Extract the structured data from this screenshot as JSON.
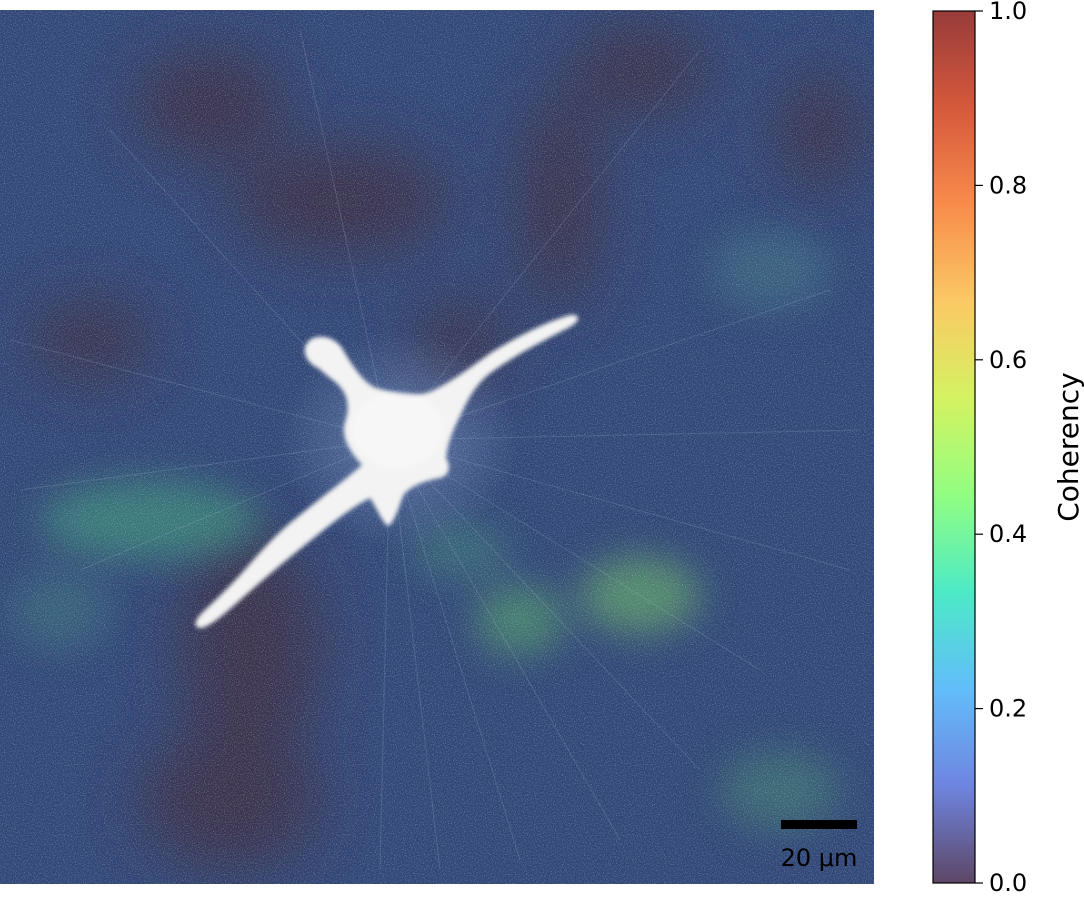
{
  "image": {
    "description_icon": "fluorescence-micrograph-coherency-overlay"
  },
  "scale_bar": {
    "label": "20 μm"
  },
  "colorbar": {
    "label": "Coherency",
    "range": [
      0.0,
      1.0
    ],
    "ticks": [
      {
        "value": 0.0,
        "label": "0.0"
      },
      {
        "value": 0.2,
        "label": "0.2"
      },
      {
        "value": 0.4,
        "label": "0.4"
      },
      {
        "value": 0.6,
        "label": "0.6"
      },
      {
        "value": 0.8,
        "label": "0.8"
      },
      {
        "value": 1.0,
        "label": "1.0"
      }
    ],
    "colormap": "turbo",
    "stops": [
      "#30123b",
      "#4662d7",
      "#36aaf9",
      "#1ae4b6",
      "#72fe5e",
      "#c8ef34",
      "#faba39",
      "#f66b19",
      "#ca2a04",
      "#7a0403"
    ]
  }
}
